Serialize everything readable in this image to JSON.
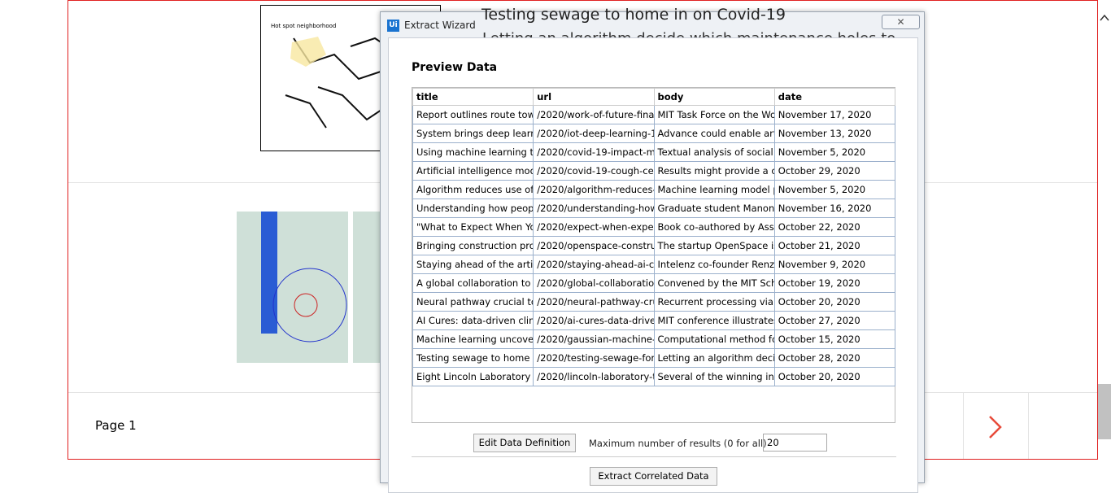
{
  "page": {
    "map_caption": "Hot spot neighborhood",
    "article_title": "Testing sewage to home in on Covid-19",
    "article_subtitle": "Letting an algorithm decide which maintenance holes to",
    "pager_label": "Page 1"
  },
  "dialog": {
    "icon": "Ui",
    "title": "Extract Wizard",
    "heading": "Preview Data",
    "table": {
      "columns": [
        "title",
        "url",
        "body",
        "date"
      ],
      "rows": [
        [
          "Report outlines route towa",
          "/2020/work-of-future-final",
          "MIT Task Force on the Wor",
          "November 17, 2020"
        ],
        [
          "System brings deep learnir",
          "/2020/iot-deep-learning-1",
          "Advance could enable artif",
          "November 13, 2020"
        ],
        [
          "Using machine learning to",
          "/2020/covid-19-impact-me",
          "Textual analysis of social m",
          "November 5, 2020"
        ],
        [
          "Artificial intelligence mode",
          "/2020/covid-19-cough-cell",
          "Results might provide a co",
          "October 29, 2020"
        ],
        [
          "Algorithm reduces use of r",
          "/2020/algorithm-reduces-u",
          "Machine learning model pi",
          "November 5, 2020"
        ],
        [
          "Understanding how people",
          "/2020/understanding-how",
          "Graduate student Manon F",
          "November 16, 2020"
        ],
        [
          "\"What to Expect When You",
          "/2020/expect-when-expect",
          "Book co-authored by Asso",
          "October 22, 2020"
        ],
        [
          "Bringing construction proj",
          "/2020/openspace-construc",
          "The startup OpenSpace is",
          "October 21, 2020"
        ],
        [
          "Staying ahead of the artific",
          "/2020/staying-ahead-ai-cu",
          "Intelenz co-founder Renzo",
          "November 9, 2020"
        ],
        [
          "A global collaboration to n",
          "/2020/global-collaboratior",
          "Convened by the MIT Schw",
          "October 19, 2020"
        ],
        [
          "Neural pathway crucial to s",
          "/2020/neural-pathway-cru",
          "Recurrent processing via p",
          "October 20, 2020"
        ],
        [
          "AI Cures: data-driven clinic",
          "/2020/ai-cures-data-driver",
          "MIT conference illustrates",
          "October 27, 2020"
        ],
        [
          "Machine learning uncovers",
          "/2020/gaussian-machine-le",
          "Computational method for",
          "October 15, 2020"
        ],
        [
          "Testing sewage to home ir",
          "/2020/testing-sewage-for-",
          "Letting an algorithm decid",
          "October 28, 2020"
        ],
        [
          "Eight Lincoln Laboratory te",
          "/2020/lincoln-laboratory-te",
          "Several of the winning innc",
          "October 20, 2020"
        ]
      ]
    },
    "edit_button": "Edit Data Definition",
    "max_label": "Maximum number of results (0 for all)",
    "max_value": "20",
    "correlated_button": "Extract Correlated Data"
  }
}
